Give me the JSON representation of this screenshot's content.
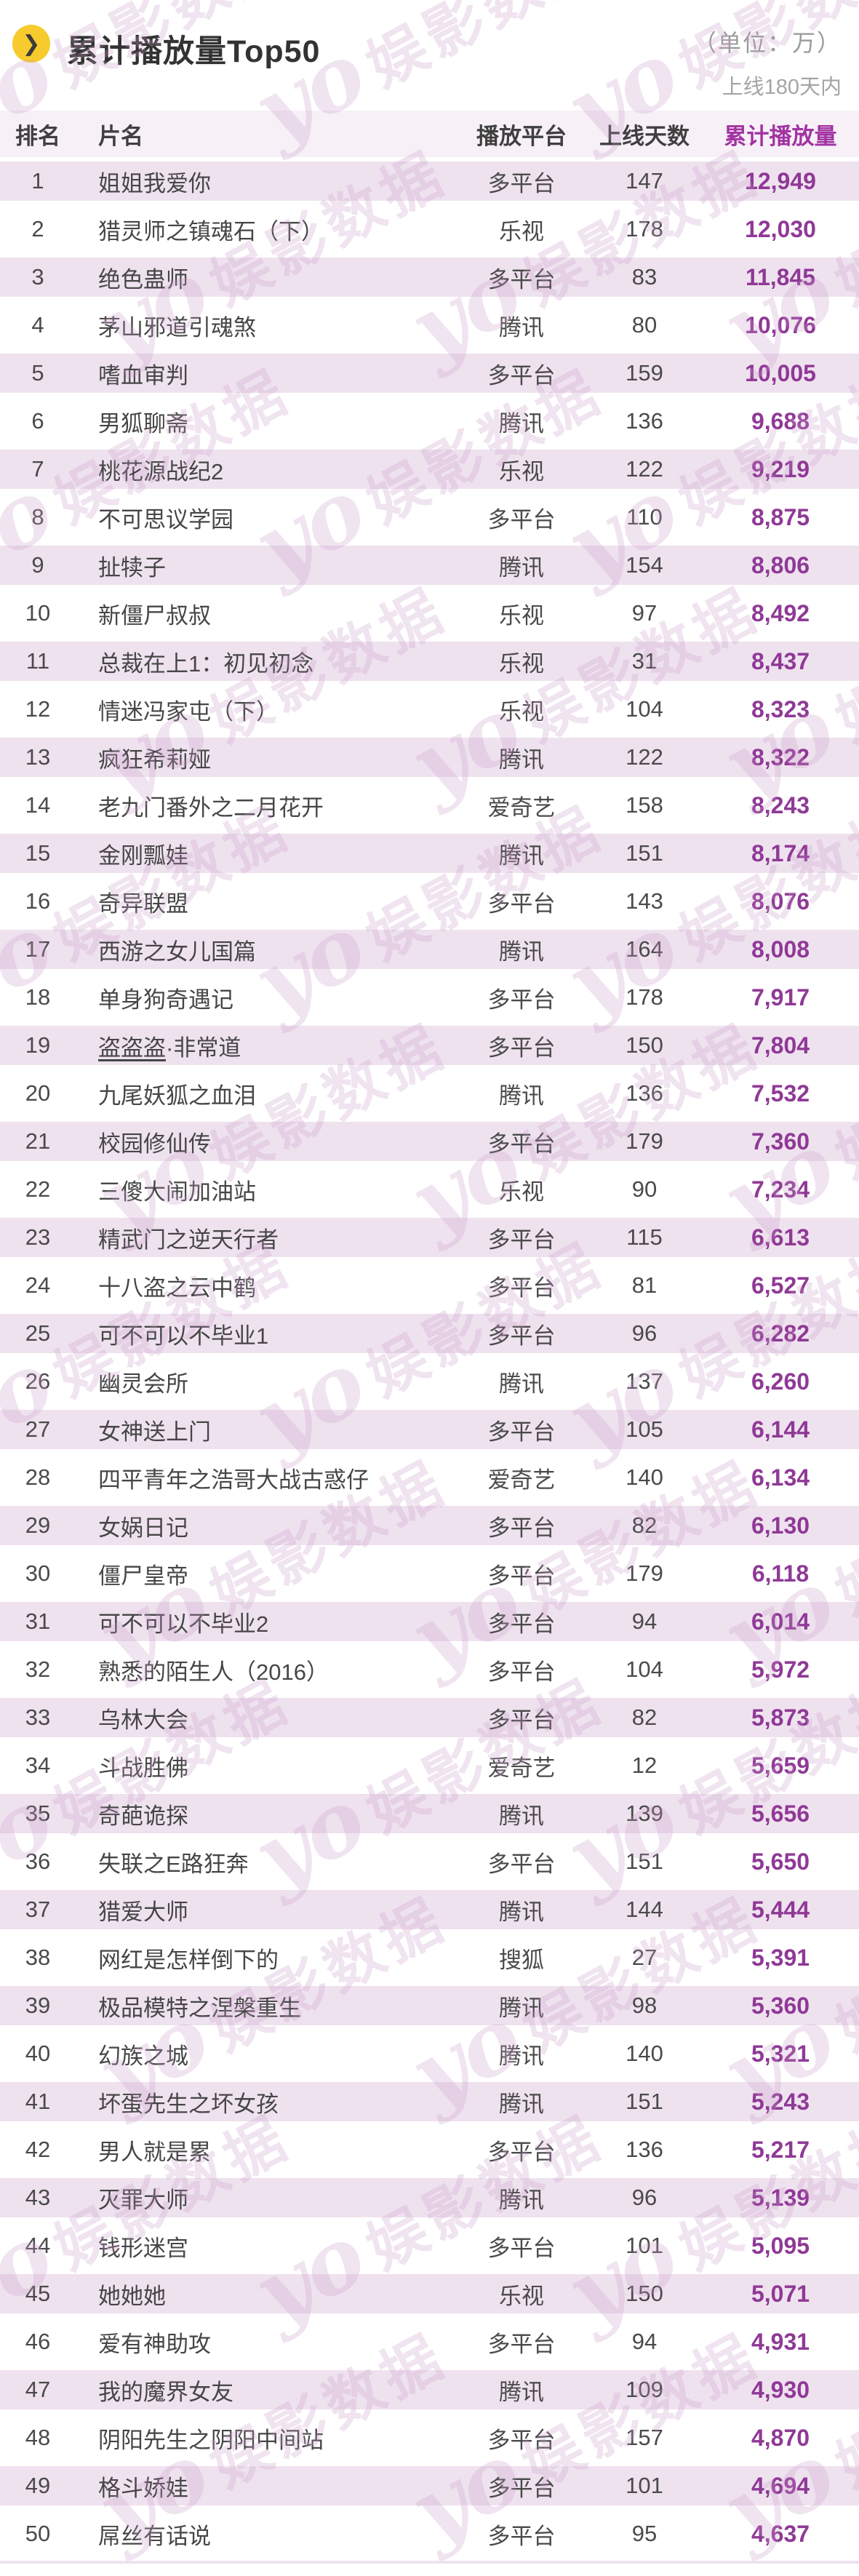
{
  "header": {
    "icon": "chevron-right-icon",
    "unit_note": "（单位：万）",
    "range_note": "上线180天内"
  },
  "watermark": {
    "logo": "yo",
    "text": "娱影数据"
  },
  "colors": {
    "accent_purple": "#8f3996",
    "header_accent_purple": "#a233a2",
    "row_pink": "#efe2ef",
    "header_band_pink": "#f7f0f7",
    "icon_yellow": "#f7cb2d",
    "watermark_pink": "#c99bc8"
  },
  "chart_data": {
    "type": "table",
    "title": "累计播放量Top50",
    "unit": "万",
    "note": "上线180天内",
    "columns": [
      "排名",
      "片名",
      "播放平台",
      "上线天数",
      "累计播放量"
    ],
    "rows": [
      {
        "rank": 1,
        "title": "姐姐我爱你",
        "platform": "多平台",
        "days": 147,
        "plays": "12,949"
      },
      {
        "rank": 2,
        "title": "猎灵师之镇魂石（下）",
        "platform": "乐视",
        "days": 178,
        "plays": "12,030"
      },
      {
        "rank": 3,
        "title": "绝色蛊师",
        "platform": "多平台",
        "days": 83,
        "plays": "11,845"
      },
      {
        "rank": 4,
        "title": "茅山邪道引魂煞",
        "platform": "腾讯",
        "days": 80,
        "plays": "10,076"
      },
      {
        "rank": 5,
        "title": "嗜血审判",
        "platform": "多平台",
        "days": 159,
        "plays": "10,005"
      },
      {
        "rank": 6,
        "title": "男狐聊斋",
        "platform": "腾讯",
        "days": 136,
        "plays": "9,688"
      },
      {
        "rank": 7,
        "title": "桃花源战纪2",
        "platform": "乐视",
        "days": 122,
        "plays": "9,219"
      },
      {
        "rank": 8,
        "title": "不可思议学园",
        "platform": "多平台",
        "days": 110,
        "plays": "8,875"
      },
      {
        "rank": 9,
        "title": "扯犊子",
        "platform": "腾讯",
        "days": 154,
        "plays": "8,806"
      },
      {
        "rank": 10,
        "title": "新僵尸叔叔",
        "platform": "乐视",
        "days": 97,
        "plays": "8,492"
      },
      {
        "rank": 11,
        "title": "总裁在上1：初见初念",
        "platform": "乐视",
        "days": 31,
        "plays": "8,437"
      },
      {
        "rank": 12,
        "title": "情迷冯家屯（下）",
        "platform": "乐视",
        "days": 104,
        "plays": "8,323"
      },
      {
        "rank": 13,
        "title": "疯狂希莉娅",
        "platform": "腾讯",
        "days": 122,
        "plays": "8,322"
      },
      {
        "rank": 14,
        "title": "老九门番外之二月花开",
        "platform": "爱奇艺",
        "days": 158,
        "plays": "8,243"
      },
      {
        "rank": 15,
        "title": "金刚瓢娃",
        "platform": "腾讯",
        "days": 151,
        "plays": "8,174"
      },
      {
        "rank": 16,
        "title": "奇异联盟",
        "platform": "多平台",
        "days": 143,
        "plays": "8,076"
      },
      {
        "rank": 17,
        "title": "西游之女儿国篇",
        "platform": "腾讯",
        "days": 164,
        "plays": "8,008"
      },
      {
        "rank": 18,
        "title": "单身狗奇遇记",
        "platform": "多平台",
        "days": 178,
        "plays": "7,917"
      },
      {
        "rank": 19,
        "title": "盗盗盗·非常道",
        "platform": "多平台",
        "days": 150,
        "plays": "7,804",
        "underline_chars": 3
      },
      {
        "rank": 20,
        "title": "九尾妖狐之血泪",
        "platform": "腾讯",
        "days": 136,
        "plays": "7,532"
      },
      {
        "rank": 21,
        "title": "校园修仙传",
        "platform": "多平台",
        "days": 179,
        "plays": "7,360"
      },
      {
        "rank": 22,
        "title": "三傻大闹加油站",
        "platform": "乐视",
        "days": 90,
        "plays": "7,234"
      },
      {
        "rank": 23,
        "title": "精武门之逆天行者",
        "platform": "多平台",
        "days": 115,
        "plays": "6,613"
      },
      {
        "rank": 24,
        "title": "十八盗之云中鹤",
        "platform": "多平台",
        "days": 81,
        "plays": "6,527"
      },
      {
        "rank": 25,
        "title": "可不可以不毕业1",
        "platform": "多平台",
        "days": 96,
        "plays": "6,282"
      },
      {
        "rank": 26,
        "title": "幽灵会所",
        "platform": "腾讯",
        "days": 137,
        "plays": "6,260"
      },
      {
        "rank": 27,
        "title": "女神送上门",
        "platform": "多平台",
        "days": 105,
        "plays": "6,144"
      },
      {
        "rank": 28,
        "title": "四平青年之浩哥大战古惑仔",
        "platform": "爱奇艺",
        "days": 140,
        "plays": "6,134"
      },
      {
        "rank": 29,
        "title": "女娲日记",
        "platform": "多平台",
        "days": 82,
        "plays": "6,130"
      },
      {
        "rank": 30,
        "title": "僵尸皇帝",
        "platform": "多平台",
        "days": 179,
        "plays": "6,118"
      },
      {
        "rank": 31,
        "title": "可不可以不毕业2",
        "platform": "多平台",
        "days": 94,
        "plays": "6,014"
      },
      {
        "rank": 32,
        "title": "熟悉的陌生人（2016）",
        "platform": "多平台",
        "days": 104,
        "plays": "5,972"
      },
      {
        "rank": 33,
        "title": "乌林大会",
        "platform": "多平台",
        "days": 82,
        "plays": "5,873"
      },
      {
        "rank": 34,
        "title": "斗战胜佛",
        "platform": "爱奇艺",
        "days": 12,
        "plays": "5,659"
      },
      {
        "rank": 35,
        "title": "奇葩诡探",
        "platform": "腾讯",
        "days": 139,
        "plays": "5,656"
      },
      {
        "rank": 36,
        "title": "失联之E路狂奔",
        "platform": "多平台",
        "days": 151,
        "plays": "5,650"
      },
      {
        "rank": 37,
        "title": "猎爱大师",
        "platform": "腾讯",
        "days": 144,
        "plays": "5,444"
      },
      {
        "rank": 38,
        "title": "网红是怎样倒下的",
        "platform": "搜狐",
        "days": 27,
        "plays": "5,391"
      },
      {
        "rank": 39,
        "title": "极品模特之涅槃重生",
        "platform": "腾讯",
        "days": 98,
        "plays": "5,360"
      },
      {
        "rank": 40,
        "title": "幻族之城",
        "platform": "腾讯",
        "days": 140,
        "plays": "5,321"
      },
      {
        "rank": 41,
        "title": "坏蛋先生之坏女孩",
        "platform": "腾讯",
        "days": 151,
        "plays": "5,243"
      },
      {
        "rank": 42,
        "title": "男人就是累",
        "platform": "多平台",
        "days": 136,
        "plays": "5,217"
      },
      {
        "rank": 43,
        "title": "灭罪大师",
        "platform": "腾讯",
        "days": 96,
        "plays": "5,139"
      },
      {
        "rank": 44,
        "title": "钱形迷宫",
        "platform": "多平台",
        "days": 101,
        "plays": "5,095"
      },
      {
        "rank": 45,
        "title": "她她她",
        "platform": "乐视",
        "days": 150,
        "plays": "5,071"
      },
      {
        "rank": 46,
        "title": "爱有神助攻",
        "platform": "多平台",
        "days": 94,
        "plays": "4,931"
      },
      {
        "rank": 47,
        "title": "我的魔界女友",
        "platform": "腾讯",
        "days": 109,
        "plays": "4,930"
      },
      {
        "rank": 48,
        "title": "阴阳先生之阴阳中间站",
        "platform": "多平台",
        "days": 157,
        "plays": "4,870"
      },
      {
        "rank": 49,
        "title": "格斗娇娃",
        "platform": "多平台",
        "days": 101,
        "plays": "4,694"
      },
      {
        "rank": 50,
        "title": "屌丝有话说",
        "platform": "多平台",
        "days": 95,
        "plays": "4,637"
      }
    ]
  }
}
